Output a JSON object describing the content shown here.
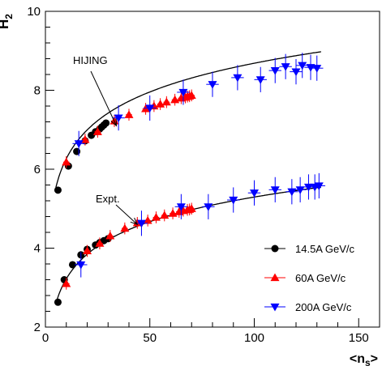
{
  "chart_data": {
    "type": "scatter",
    "ylabel": "H",
    "ylabel_sub": "2",
    "xlabel": "<n",
    "xlabel_sub": "s",
    "xlabel_close": ">",
    "xlim": [
      0,
      160
    ],
    "ylim": [
      2,
      10
    ],
    "x_ticks": [
      0,
      50,
      100,
      150
    ],
    "y_ticks": [
      2,
      4,
      6,
      8,
      10
    ],
    "grid": false,
    "legend_position": "bottom-right",
    "annotations": [
      {
        "text": "HIJING",
        "points_to": {
          "x": 34,
          "y": 7.1
        }
      },
      {
        "text": "Expt.",
        "points_to": {
          "x": 44,
          "y": 4.6
        }
      }
    ],
    "curves": [
      {
        "label": "HIJING",
        "a": 1.05,
        "b": 3.85,
        "from": 5,
        "to": 132
      },
      {
        "label": "Expt.",
        "a": 0.9,
        "b": 1.15,
        "from": 5,
        "to": 132
      }
    ],
    "series": [
      {
        "name": "14.5A GeV/c",
        "marker": "circle",
        "color": "#000000",
        "groups": [
          {
            "x": [
              6,
              11,
              15,
              19,
              22,
              24,
              26,
              27,
              28,
              29
            ],
            "y": [
              5.47,
              6.08,
              6.45,
              6.72,
              6.86,
              6.95,
              7.02,
              7.07,
              7.12,
              7.17
            ]
          },
          {
            "x": [
              6,
              9,
              13,
              17,
              20,
              24,
              26,
              28,
              30
            ],
            "y": [
              2.63,
              3.2,
              3.58,
              3.83,
              3.97,
              4.08,
              4.14,
              4.19,
              4.24
            ]
          }
        ],
        "yerr": 0.06,
        "xerr": 0.8
      },
      {
        "name": "60A GeV/c",
        "marker": "triangle-up",
        "color": "#ff0000",
        "groups": [
          {
            "x": [
              10,
              19,
              25,
              33,
              40,
              48,
              52,
              55,
              58,
              62,
              65,
              67,
              68,
              69,
              70
            ],
            "y": [
              6.18,
              6.75,
              6.95,
              7.22,
              7.38,
              7.53,
              7.6,
              7.65,
              7.7,
              7.76,
              7.8,
              7.82,
              7.84,
              7.85,
              7.87
            ]
          },
          {
            "x": [
              10,
              20,
              26,
              31,
              38,
              44,
              49,
              53,
              57,
              61,
              64,
              66,
              68,
              69,
              70
            ],
            "y": [
              3.1,
              3.93,
              4.12,
              4.31,
              4.5,
              4.64,
              4.7,
              4.78,
              4.83,
              4.88,
              4.92,
              4.95,
              4.97,
              4.98,
              5.0
            ]
          }
        ],
        "yerr": 0.15,
        "xerr": 1.5
      },
      {
        "name": "200A GeV/c",
        "marker": "triangle-down",
        "color": "#0000ff",
        "groups": [
          {
            "x": [
              16,
              35,
              50,
              66,
              80,
              92,
              103,
              110,
              115,
              120,
              123,
              127,
              130
            ],
            "y": [
              6.65,
              7.3,
              7.55,
              7.95,
              8.15,
              8.32,
              8.27,
              8.5,
              8.6,
              8.47,
              8.63,
              8.58,
              8.56
            ]
          },
          {
            "x": [
              17,
              46,
              65,
              78,
              90,
              100,
              110,
              118,
              122,
              126,
              129,
              131
            ],
            "y": [
              3.58,
              4.63,
              5.05,
              5.05,
              5.22,
              5.4,
              5.48,
              5.43,
              5.48,
              5.55,
              5.55,
              5.58
            ]
          }
        ],
        "yerr": 0.32,
        "xerr": 3
      }
    ]
  }
}
